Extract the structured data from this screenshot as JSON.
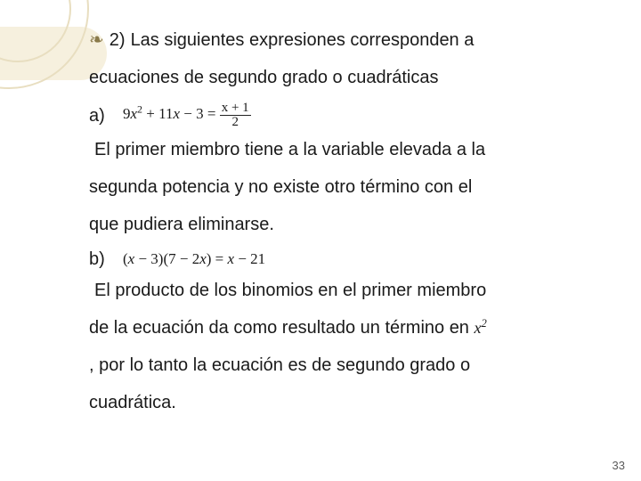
{
  "decor": {
    "stroke_color": "#e8dec0",
    "band_color": "#f2ead0"
  },
  "text_color": "#1a1a1a",
  "bullet_color": "#8a7a4a",
  "font_size_body": 20,
  "font_size_math": 17,
  "item_number": "2)",
  "intro_line1": "Las siguientes expresiones corresponden a",
  "intro_line2": "ecuaciones de segundo grado o cuadráticas",
  "part_a": {
    "label": "a)",
    "equation": {
      "lhs_terms": "9x² + 11x − 3",
      "rhs_num": "x + 1",
      "rhs_den": "2"
    },
    "explain1": "El primer miembro tiene a la variable elevada a la",
    "explain2": "segunda potencia y no existe otro término con el",
    "explain3": "que pudiera eliminarse."
  },
  "part_b": {
    "label": "b)",
    "equation_text": "(x − 3)(7 − 2x) = x − 21",
    "explain1": "El producto de los binomios en el primer miembro",
    "explain2_pre": "de la ecuación da como resultado un término en",
    "explain2_math": "x²",
    "explain3": ", por lo tanto la ecuación es de segundo grado o",
    "explain4": "cuadrática."
  },
  "page_number": "33"
}
